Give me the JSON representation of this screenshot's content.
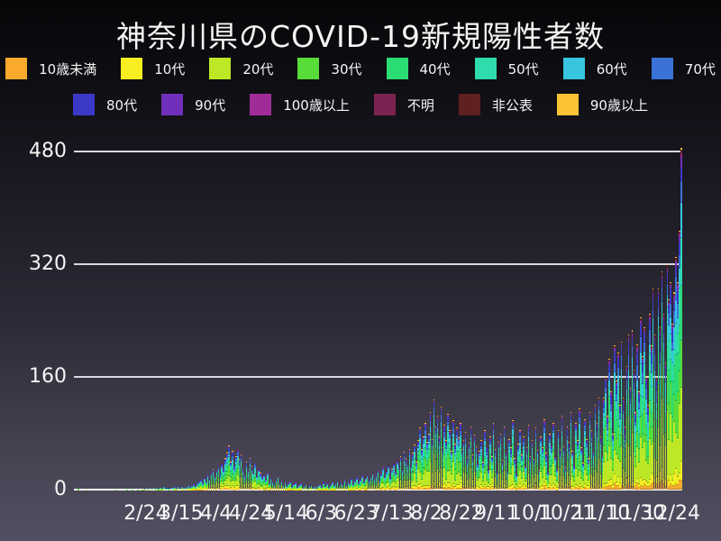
{
  "title": "神奈川県のCOVID-19新規陽性者数",
  "colors": {
    "background_top": "#060608",
    "background_bottom": "#524f63",
    "grid_line": "#d9d8e0",
    "zero_line": "#ffffff",
    "text": "#f5f5f5"
  },
  "chart_data": {
    "type": "bar",
    "stacked": true,
    "title": "神奈川県のCOVID-19新規陽性者数",
    "xlabel": "",
    "ylabel": "",
    "ylim": [
      0,
      480
    ],
    "yticks": [
      0,
      160,
      320,
      480
    ],
    "grid": "horizontal",
    "legend_position": "top",
    "x_start_date": "1/16",
    "x_days_total": 345,
    "xtick_labels": [
      "2/24",
      "3/15",
      "4/4",
      "4/24",
      "5/14",
      "6/3",
      "6/23",
      "7/13",
      "8/2",
      "8/22",
      "9/11",
      "10/1",
      "10/21",
      "11/10",
      "11/30",
      "12/24"
    ],
    "xtick_days": [
      39,
      59,
      79,
      99,
      119,
      139,
      159,
      179,
      199,
      219,
      239,
      259,
      279,
      299,
      319,
      339
    ],
    "groups": [
      {
        "label": "10歳未満",
        "color": "#f9a92c",
        "share": 0.03
      },
      {
        "label": "10代",
        "color": "#f6ee20",
        "share": 0.05
      },
      {
        "label": "20代",
        "color": "#bce826",
        "share": 0.22
      },
      {
        "label": "30代",
        "color": "#57dc39",
        "share": 0.17
      },
      {
        "label": "40代",
        "color": "#2bdc72",
        "share": 0.15
      },
      {
        "label": "50代",
        "color": "#2edcae",
        "share": 0.125
      },
      {
        "label": "60代",
        "color": "#37c5df",
        "share": 0.08
      },
      {
        "label": "70代",
        "color": "#3b72d8",
        "share": 0.07
      },
      {
        "label": "80代",
        "color": "#3c39c8",
        "share": 0.055
      },
      {
        "label": "90代",
        "color": "#7030bc",
        "share": 0.025
      },
      {
        "label": "100歳以上",
        "color": "#a02c9a",
        "share": 0.005
      },
      {
        "label": "不明",
        "color": "#7c2351",
        "share": 0.008
      },
      {
        "label": "非公表",
        "color": "#5e2020",
        "share": 0.007
      },
      {
        "label": "90歳以上",
        "color": "#fcc334",
        "share": 0.005
      }
    ],
    "legend_row1_count": 8,
    "daily_totals": [
      1,
      0,
      0,
      0,
      0,
      1,
      0,
      0,
      0,
      0,
      0,
      0,
      0,
      0,
      0,
      0,
      1,
      0,
      0,
      0,
      0,
      1,
      1,
      0,
      0,
      0,
      0,
      0,
      1,
      1,
      0,
      1,
      0,
      0,
      1,
      0,
      1,
      1,
      2,
      1,
      2,
      1,
      2,
      3,
      1,
      2,
      2,
      3,
      2,
      4,
      2,
      3,
      2,
      1,
      3,
      4,
      2,
      5,
      3,
      6,
      4,
      3,
      5,
      7,
      4,
      6,
      8,
      5,
      9,
      12,
      14,
      10,
      18,
      12,
      22,
      16,
      25,
      30,
      20,
      28,
      34,
      22,
      38,
      30,
      45,
      52,
      63,
      40,
      55,
      35,
      48,
      58,
      44,
      50,
      30,
      22,
      40,
      28,
      45,
      33,
      25,
      38,
      20,
      30,
      24,
      18,
      22,
      15,
      25,
      10,
      18,
      12,
      8,
      14,
      20,
      9,
      13,
      7,
      11,
      6,
      9,
      12,
      5,
      8,
      10,
      4,
      7,
      9,
      3,
      6,
      8,
      2,
      5,
      7,
      4,
      6,
      3,
      5,
      8,
      4,
      10,
      6,
      9,
      3,
      7,
      11,
      5,
      9,
      12,
      6,
      10,
      8,
      14,
      7,
      12,
      9,
      16,
      8,
      13,
      18,
      10,
      15,
      20,
      12,
      17,
      22,
      14,
      19,
      25,
      16,
      22,
      28,
      14,
      24,
      32,
      20,
      27,
      35,
      18,
      30,
      38,
      25,
      42,
      34,
      48,
      30,
      54,
      45,
      38,
      58,
      35,
      52,
      64,
      40,
      70,
      88,
      58,
      76,
      95,
      68,
      80,
      110,
      72,
      128,
      90,
      105,
      76,
      118,
      60,
      92,
      70,
      108,
      84,
      55,
      98,
      65,
      88,
      74,
      95,
      58,
      70,
      82,
      46,
      66,
      90,
      50,
      78,
      62,
      38,
      55,
      70,
      40,
      85,
      62,
      30,
      75,
      48,
      95,
      58,
      25,
      68,
      80,
      42,
      90,
      55,
      28,
      72,
      60,
      98,
      45,
      22,
      65,
      85,
      50,
      75,
      35,
      60,
      92,
      48,
      70,
      44,
      88,
      56,
      28,
      76,
      60,
      100,
      52,
      26,
      80,
      64,
      95,
      48,
      30,
      85,
      58,
      105,
      62,
      32,
      90,
      68,
      110,
      55,
      35,
      95,
      70,
      115,
      60,
      38,
      100,
      72,
      45,
      110,
      85,
      55,
      120,
      95,
      130,
      75,
      50,
      130,
      160,
      105,
      185,
      140,
      80,
      205,
      155,
      195,
      120,
      210,
      130,
      90,
      175,
      220,
      145,
      226,
      170,
      110,
      206,
      140,
      245,
      190,
      230,
      160,
      120,
      250,
      205,
      285,
      220,
      160,
      285,
      230,
      310,
      250,
      180,
      320,
      270,
      295,
      235,
      280,
      330,
      295,
      368,
      485
    ]
  }
}
